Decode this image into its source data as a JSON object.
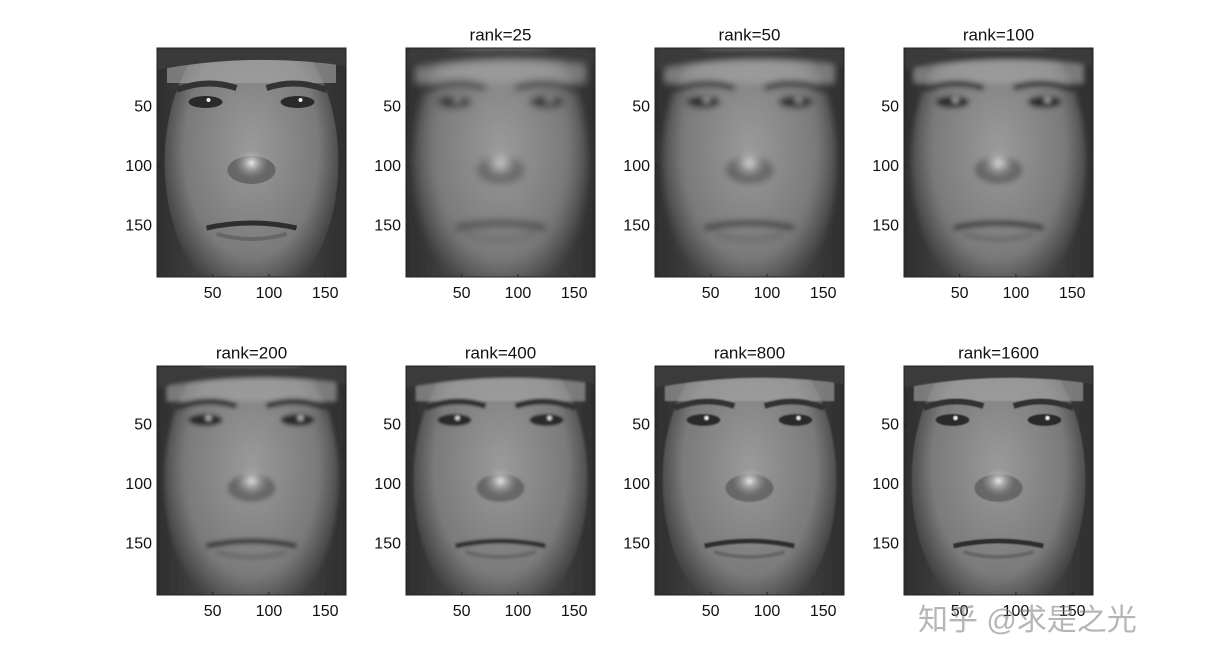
{
  "chart_data": [
    {
      "type": "image",
      "xlim": [
        0.5,
        168.5
      ],
      "ylim": [
        0.5,
        192.5
      ],
      "xticks": [
        50,
        100,
        150
      ],
      "yticks": [
        50,
        100,
        150
      ]
    },
    {
      "type": "image",
      "title": "rank=25",
      "xlim": [
        0.5,
        168.5
      ],
      "ylim": [
        0.5,
        192.5
      ],
      "xticks": [
        50,
        100,
        150
      ],
      "yticks": [
        50,
        100,
        150
      ]
    },
    {
      "type": "image",
      "title": "rank=50",
      "xlim": [
        0.5,
        168.5
      ],
      "ylim": [
        0.5,
        192.5
      ],
      "xticks": [
        50,
        100,
        150
      ],
      "yticks": [
        50,
        100,
        150
      ]
    },
    {
      "type": "image",
      "title": "rank=100",
      "xlim": [
        0.5,
        168.5
      ],
      "ylim": [
        0.5,
        192.5
      ],
      "xticks": [
        50,
        100,
        150
      ],
      "yticks": [
        50,
        100,
        150
      ]
    },
    {
      "type": "image",
      "title": "rank=200",
      "xlim": [
        0.5,
        168.5
      ],
      "ylim": [
        0.5,
        192.5
      ],
      "xticks": [
        50,
        100,
        150
      ],
      "yticks": [
        50,
        100,
        150
      ]
    },
    {
      "type": "image",
      "title": "rank=400",
      "xlim": [
        0.5,
        168.5
      ],
      "ylim": [
        0.5,
        192.5
      ],
      "xticks": [
        50,
        100,
        150
      ],
      "yticks": [
        50,
        100,
        150
      ]
    },
    {
      "type": "image",
      "title": "rank=800",
      "xlim": [
        0.5,
        168.5
      ],
      "ylim": [
        0.5,
        192.5
      ],
      "xticks": [
        50,
        100,
        150
      ],
      "yticks": [
        50,
        100,
        150
      ]
    },
    {
      "type": "image",
      "title": "rank=1600",
      "xlim": [
        0.5,
        168.5
      ],
      "ylim": [
        0.5,
        192.5
      ],
      "xticks": [
        50,
        100,
        150
      ],
      "yticks": [
        50,
        100,
        150
      ]
    }
  ],
  "watermark": "知乎 @求是之光"
}
